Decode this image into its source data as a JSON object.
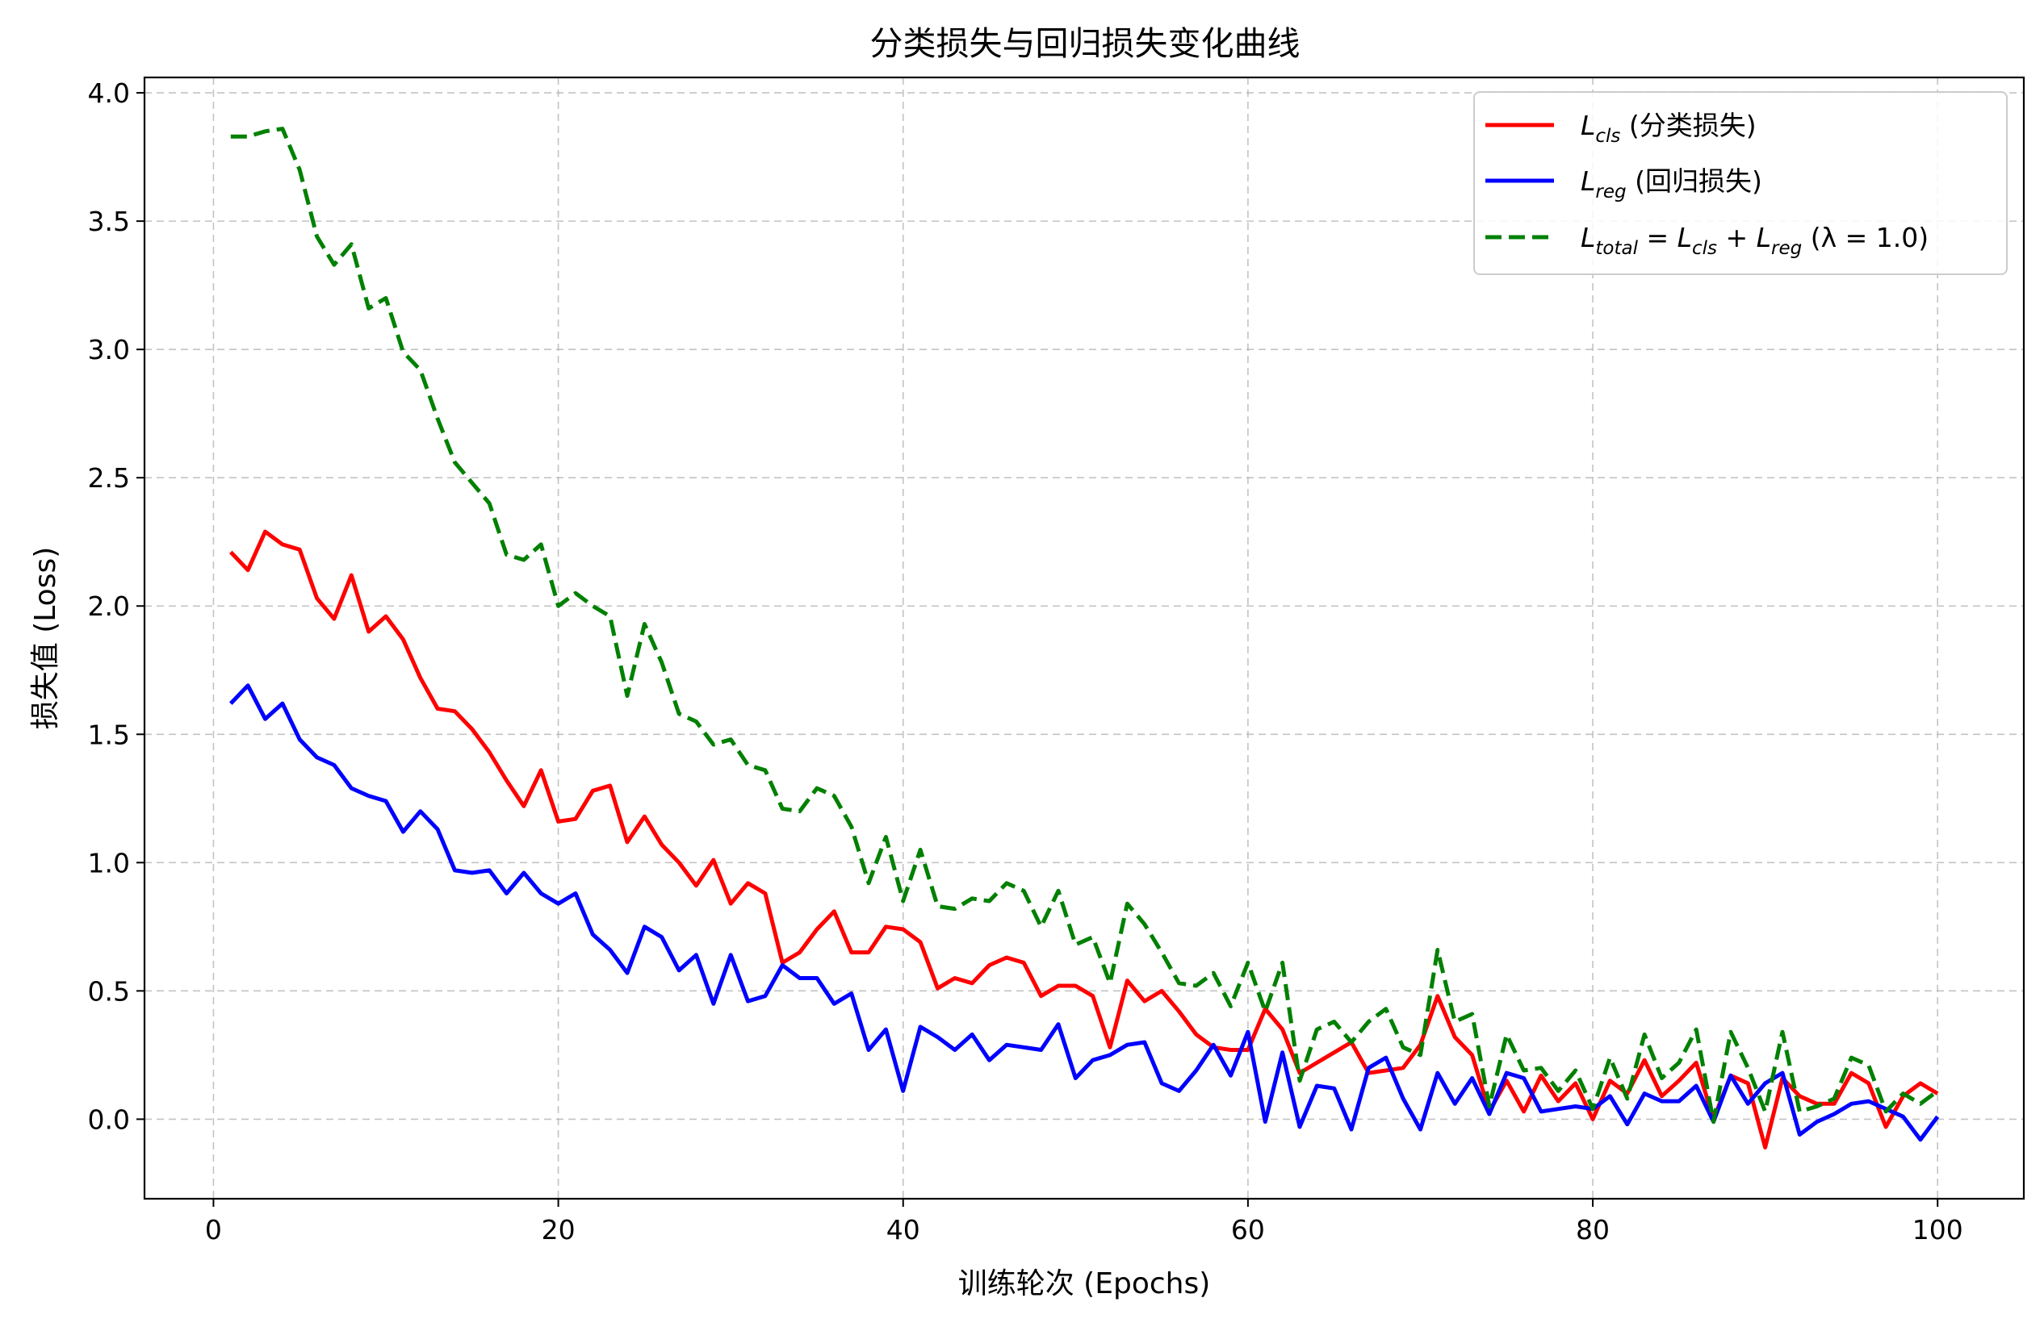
{
  "chart_data": {
    "type": "line",
    "title": "分类损失与回归损失变化曲线",
    "xlabel": "训练轮次 (Epochs)",
    "ylabel": "损失值 (Loss)",
    "xlim": [
      -4,
      105
    ],
    "ylim": [
      -0.31,
      4.06
    ],
    "x_ticks": [
      0,
      20,
      40,
      60,
      80,
      100
    ],
    "y_ticks": [
      0.0,
      0.5,
      1.0,
      1.5,
      2.0,
      2.5,
      3.0,
      3.5,
      4.0
    ],
    "grid": true,
    "legend_position": "upper right",
    "x": [
      1,
      2,
      3,
      4,
      5,
      6,
      7,
      8,
      9,
      10,
      11,
      12,
      13,
      14,
      15,
      16,
      17,
      18,
      19,
      20,
      21,
      22,
      23,
      24,
      25,
      26,
      27,
      28,
      29,
      30,
      31,
      32,
      33,
      34,
      35,
      36,
      37,
      38,
      39,
      40,
      41,
      42,
      43,
      44,
      45,
      46,
      47,
      48,
      49,
      50,
      51,
      52,
      53,
      54,
      55,
      56,
      57,
      58,
      59,
      60,
      61,
      62,
      63,
      64,
      65,
      66,
      67,
      68,
      69,
      70,
      71,
      72,
      73,
      74,
      75,
      76,
      77,
      78,
      79,
      80,
      81,
      82,
      83,
      84,
      85,
      86,
      87,
      88,
      89,
      90,
      91,
      92,
      93,
      94,
      95,
      96,
      97,
      98,
      99,
      100
    ],
    "series": [
      {
        "name": "L_cls (分类损失)",
        "legend_main": "L",
        "legend_sub": "cls",
        "legend_suffix": " (分类损失)",
        "color": "#ff0000",
        "dash": "solid",
        "values": [
          2.21,
          2.14,
          2.29,
          2.24,
          2.22,
          2.03,
          1.95,
          2.12,
          1.9,
          1.96,
          1.87,
          1.72,
          1.6,
          1.59,
          1.52,
          1.43,
          1.32,
          1.22,
          1.36,
          1.16,
          1.17,
          1.28,
          1.3,
          1.08,
          1.18,
          1.07,
          1.0,
          0.91,
          1.01,
          0.84,
          0.92,
          0.88,
          0.61,
          0.65,
          0.74,
          0.81,
          0.65,
          0.65,
          0.75,
          0.74,
          0.69,
          0.51,
          0.55,
          0.53,
          0.6,
          0.63,
          0.61,
          0.48,
          0.52,
          0.52,
          0.48,
          0.28,
          0.54,
          0.46,
          0.5,
          0.42,
          0.33,
          0.28,
          0.27,
          0.27,
          0.43,
          0.35,
          0.18,
          0.22,
          0.26,
          0.3,
          0.18,
          0.19,
          0.2,
          0.29,
          0.48,
          0.32,
          0.25,
          0.03,
          0.15,
          0.03,
          0.17,
          0.07,
          0.14,
          0.0,
          0.15,
          0.1,
          0.23,
          0.09,
          0.15,
          0.22,
          0.0,
          0.17,
          0.14,
          -0.11,
          0.16,
          0.09,
          0.06,
          0.06,
          0.18,
          0.14,
          -0.03,
          0.09,
          0.14,
          0.1
        ]
      },
      {
        "name": "L_reg (回归损失)",
        "legend_main": "L",
        "legend_sub": "reg",
        "legend_suffix": " (回归损失)",
        "color": "#0000ff",
        "dash": "solid",
        "values": [
          1.62,
          1.69,
          1.56,
          1.62,
          1.48,
          1.41,
          1.38,
          1.29,
          1.26,
          1.24,
          1.12,
          1.2,
          1.13,
          0.97,
          0.96,
          0.97,
          0.88,
          0.96,
          0.88,
          0.84,
          0.88,
          0.72,
          0.66,
          0.57,
          0.75,
          0.71,
          0.58,
          0.64,
          0.45,
          0.64,
          0.46,
          0.48,
          0.6,
          0.55,
          0.55,
          0.45,
          0.49,
          0.27,
          0.35,
          0.11,
          0.36,
          0.32,
          0.27,
          0.33,
          0.23,
          0.29,
          0.28,
          0.27,
          0.37,
          0.16,
          0.23,
          0.25,
          0.29,
          0.3,
          0.14,
          0.11,
          0.19,
          0.29,
          0.17,
          0.34,
          -0.01,
          0.26,
          -0.03,
          0.13,
          0.12,
          -0.04,
          0.2,
          0.24,
          0.08,
          -0.04,
          0.18,
          0.06,
          0.16,
          0.02,
          0.18,
          0.16,
          0.03,
          0.04,
          0.05,
          0.04,
          0.09,
          -0.02,
          0.1,
          0.07,
          0.07,
          0.13,
          -0.01,
          0.17,
          0.06,
          0.14,
          0.18,
          -0.06,
          -0.01,
          0.02,
          0.06,
          0.07,
          0.04,
          0.01,
          -0.08,
          0.01
        ]
      },
      {
        "name": "L_total = L_cls + L_reg (λ = 1.0)",
        "legend_main": "L",
        "legend_sub": "total",
        "legend_suffix": " = L",
        "legend_suffix2": "cls",
        "legend_suffix3": " + L",
        "legend_suffix4": "reg",
        "legend_suffix5": " (λ = 1.0)",
        "color": "#008000",
        "dash": "dashed",
        "values": [
          3.83,
          3.83,
          3.85,
          3.86,
          3.7,
          3.44,
          3.33,
          3.41,
          3.16,
          3.2,
          2.99,
          2.92,
          2.73,
          2.56,
          2.48,
          2.4,
          2.2,
          2.18,
          2.24,
          2.0,
          2.05,
          2.0,
          1.96,
          1.65,
          1.93,
          1.78,
          1.58,
          1.55,
          1.46,
          1.48,
          1.38,
          1.36,
          1.21,
          1.2,
          1.29,
          1.26,
          1.14,
          0.92,
          1.1,
          0.85,
          1.05,
          0.83,
          0.82,
          0.86,
          0.85,
          0.92,
          0.89,
          0.75,
          0.89,
          0.68,
          0.71,
          0.53,
          0.84,
          0.76,
          0.65,
          0.53,
          0.52,
          0.57,
          0.44,
          0.61,
          0.42,
          0.61,
          0.15,
          0.35,
          0.38,
          0.3,
          0.38,
          0.43,
          0.28,
          0.25,
          0.66,
          0.38,
          0.41,
          0.05,
          0.33,
          0.19,
          0.2,
          0.11,
          0.19,
          0.04,
          0.24,
          0.08,
          0.33,
          0.16,
          0.22,
          0.35,
          -0.01,
          0.34,
          0.2,
          0.03,
          0.34,
          0.03,
          0.05,
          0.08,
          0.24,
          0.21,
          0.03,
          0.1,
          0.06,
          0.11
        ]
      }
    ]
  }
}
